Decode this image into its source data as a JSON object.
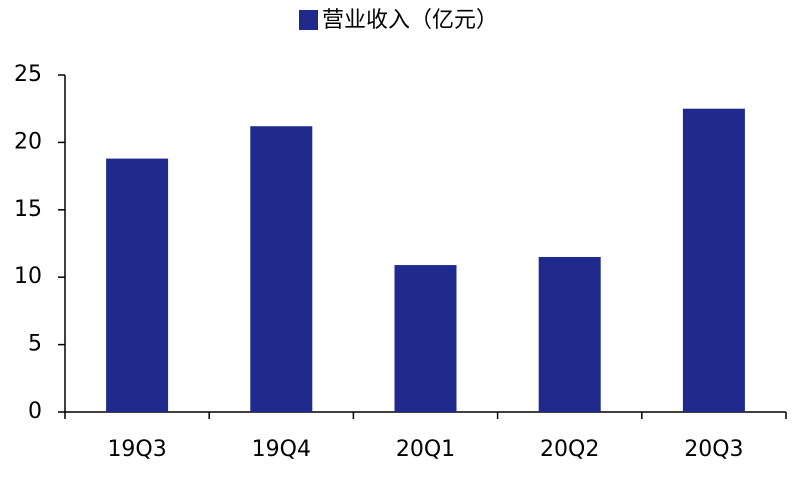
{
  "chart_data": {
    "type": "bar",
    "categories": [
      "19Q3",
      "19Q4",
      "20Q1",
      "20Q2",
      "20Q3"
    ],
    "series": [
      {
        "name": "营业收入（亿元）",
        "color": "#1f2a8c",
        "values": [
          18.8,
          21.2,
          10.9,
          11.5,
          22.5
        ]
      }
    ],
    "ylim": [
      0,
      25
    ],
    "yticks": [
      0,
      5,
      10,
      15,
      20,
      25
    ],
    "grid": false,
    "legend": "top"
  }
}
